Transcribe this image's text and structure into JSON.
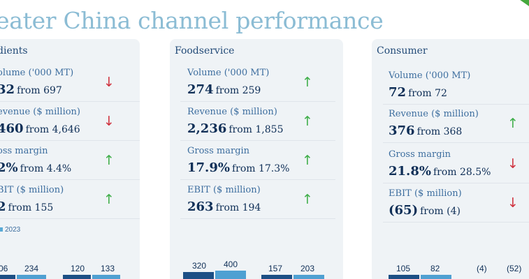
{
  "title": "eater China channel performance",
  "legend_year": "2023",
  "panels": {
    "ingredients": {
      "title": "dients",
      "metrics": [
        {
          "label": "olume ('000 MT)",
          "value": "32",
          "from": "from 697",
          "trend": "down"
        },
        {
          "label": "evenue ($ million)",
          "value": "460",
          "from": "from 4,646",
          "trend": "down"
        },
        {
          "label": "oss margin",
          "value": "2%",
          "from": "from 4.4%",
          "trend": "up"
        },
        {
          "label": "BIT ($ million)",
          "value": "2",
          "from": "from 155",
          "trend": "up"
        }
      ],
      "bar_labels": [
        "06",
        "234",
        "120",
        "133"
      ]
    },
    "foodservice": {
      "title": "Foodservice",
      "metrics": [
        {
          "label": "Volume ('000 MT)",
          "value": "274",
          "from": "from 259",
          "trend": "up"
        },
        {
          "label": "Revenue ($ million)",
          "value": "2,236",
          "from": "from 1,855",
          "trend": "up"
        },
        {
          "label": "Gross margin",
          "value": "17.9%",
          "from": "from 17.3%",
          "trend": "up"
        },
        {
          "label": "EBIT ($ million)",
          "value": "263",
          "from": "from 194",
          "trend": "up"
        }
      ],
      "bar_labels": [
        "320",
        "400",
        "157",
        "203"
      ]
    },
    "consumer": {
      "title": "Consumer",
      "metrics": [
        {
          "label": "Volume ('000 MT)",
          "value": "72",
          "from": "from 72",
          "trend": ""
        },
        {
          "label": "Revenue ($ million)",
          "value": "376",
          "from": "from 368",
          "trend": "up"
        },
        {
          "label": "Gross margin",
          "value": "21.8%",
          "from": "from 28.5%",
          "trend": "down"
        },
        {
          "label": "EBIT ($ million)",
          "value": "(65)",
          "from": "from (4)",
          "trend": "down"
        }
      ],
      "bar_labels": [
        "105",
        "82",
        "(4)",
        "(52)"
      ]
    }
  },
  "colors": {
    "title": "#8bbcd4",
    "up_arrow": "#3fae49",
    "down_arrow": "#d0333f",
    "bar_prior": "#1c4f85",
    "bar_current": "#4fa0d2"
  },
  "icons": {
    "up": "arrow-up-icon",
    "down": "arrow-down-icon"
  }
}
